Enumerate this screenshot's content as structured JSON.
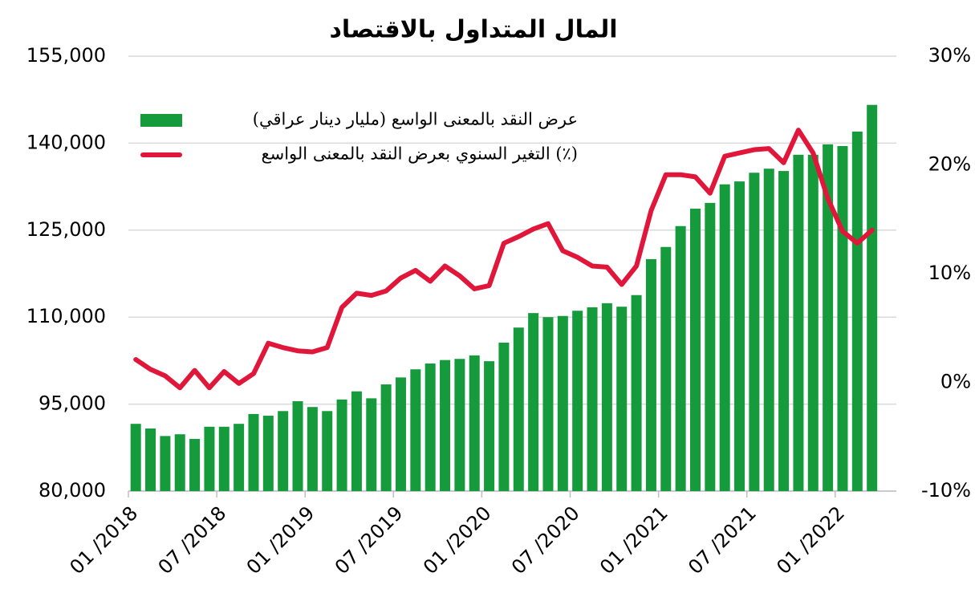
{
  "chart_data": {
    "type": "bar_line",
    "title": "المال المتداول بالاقتصاد",
    "categories": [
      "01 /2018",
      null,
      null,
      null,
      null,
      null,
      "07 /2018",
      null,
      null,
      null,
      null,
      null,
      "01 /2019",
      null,
      null,
      null,
      null,
      null,
      "07 /2019",
      null,
      null,
      null,
      null,
      null,
      "01 /2020",
      null,
      null,
      null,
      null,
      null,
      "07 /2020",
      null,
      null,
      null,
      null,
      null,
      "01 /2021",
      null,
      null,
      null,
      null,
      null,
      "07 /2021",
      null,
      null,
      null,
      null,
      null,
      "01 /2022",
      null,
      null
    ],
    "series": [
      {
        "name": "عرض النقد بالمعنى الواسع (مليار دينار عراقي)",
        "color": "#169b3c",
        "kind": "bar",
        "values": [
          91600,
          90800,
          89500,
          89800,
          89000,
          91100,
          91100,
          91600,
          93300,
          93000,
          93800,
          95500,
          94500,
          93800,
          95800,
          97200,
          96000,
          98400,
          99600,
          101000,
          102000,
          102600,
          102800,
          103400,
          102400,
          105600,
          108200,
          110700,
          110000,
          110200,
          111100,
          111700,
          112400,
          111800,
          113800,
          120000,
          122100,
          125700,
          128700,
          129700,
          132900,
          133400,
          134900,
          135600,
          135200,
          138000,
          138000,
          139800,
          139500,
          142000,
          146600
        ]
      },
      {
        "name": "التغير السنوي بعرض النقد بالمعنى الواسع (٪)",
        "color": "#e0173a",
        "kind": "line",
        "axis": "y2",
        "values": [
          2.1,
          1.2,
          0.6,
          -0.5,
          1.1,
          -0.5,
          1.0,
          -0.1,
          0.8,
          3.6,
          3.2,
          2.9,
          2.8,
          3.2,
          6.9,
          8.2,
          8.0,
          8.4,
          9.6,
          10.3,
          9.3,
          10.7,
          9.8,
          8.6,
          8.9,
          12.8,
          13.4,
          14.1,
          14.6,
          12.1,
          11.5,
          10.7,
          10.6,
          9.0,
          10.7,
          15.8,
          19.1,
          19.1,
          18.9,
          17.4,
          20.8,
          21.1,
          21.4,
          21.5,
          20.2,
          23.2,
          21.1,
          16.9,
          13.9,
          12.8,
          14.0
        ]
      }
    ],
    "ylim": [
      80000,
      155000
    ],
    "yticks": [
      {
        "value": 80000,
        "label": "80,000"
      },
      {
        "value": 95000,
        "label": "95,000"
      },
      {
        "value": 110000,
        "label": "110,000"
      },
      {
        "value": 125000,
        "label": "125,000"
      },
      {
        "value": 140000,
        "label": "140,000"
      },
      {
        "value": 155000,
        "label": "155,000"
      }
    ],
    "y2lim": [
      -10,
      30
    ],
    "y2ticks": [
      {
        "value": -10,
        "label": "-10%"
      },
      {
        "value": 0,
        "label": "0%"
      },
      {
        "value": 10,
        "label": "10%"
      },
      {
        "value": 20,
        "label": "20%"
      },
      {
        "value": 30,
        "label": "30%"
      }
    ],
    "grid": true,
    "legend": "upper left"
  }
}
